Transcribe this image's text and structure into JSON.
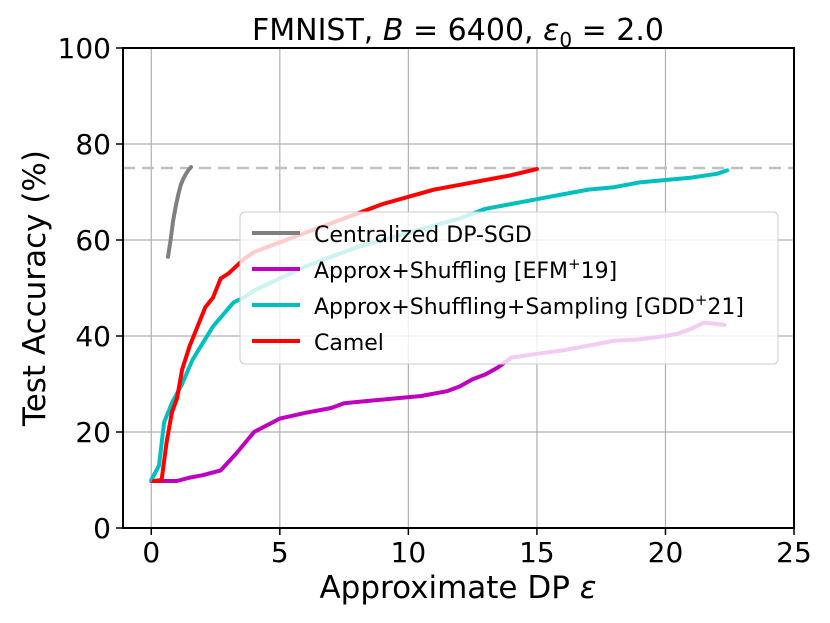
{
  "chart_data": {
    "type": "line",
    "title": {
      "prefix": "FMNIST, ",
      "b_symbol": "B",
      "b_value": " = 6400, ",
      "eps_symbol": "ε",
      "eps_sub": "0",
      "eps_value": " = 2.0"
    },
    "xlabel": {
      "text": "Approximate DP ",
      "symbol": "ε"
    },
    "ylabel": "Test Accuracy (%)",
    "xlim": [
      -1.1,
      25
    ],
    "ylim": [
      0,
      100
    ],
    "xticks": [
      "0",
      "5",
      "10",
      "15",
      "20",
      "25"
    ],
    "yticks": [
      "0",
      "20",
      "40",
      "60",
      "80",
      "100"
    ],
    "grid": true,
    "legend_position": "center-right",
    "reference_line": {
      "y": 75,
      "style": "dashed",
      "color": "#c0c0c0"
    },
    "series": [
      {
        "name": "Centralized DP-SGD",
        "color": "#808080",
        "x": [
          0.65,
          0.75,
          0.85,
          0.95,
          1.05,
          1.15,
          1.25,
          1.35,
          1.45,
          1.55
        ],
        "y": [
          56.5,
          60,
          64,
          67,
          69.5,
          71.5,
          72.8,
          73.8,
          74.6,
          75.2
        ]
      },
      {
        "name": "Approx+Shuffling [EFM",
        "name_sup": "+",
        "name_end": "19]",
        "color": "#bf00bf",
        "x": [
          0,
          0.5,
          1,
          1.5,
          2,
          2.7,
          3.3,
          4,
          5,
          6,
          7,
          7.5,
          8.5,
          9.5,
          10.5,
          11.5,
          12,
          12.5,
          13,
          13.5,
          14,
          15,
          16,
          17,
          18,
          19,
          20,
          20.5,
          21,
          21.5,
          22,
          22.3
        ],
        "y": [
          9.8,
          9.8,
          9.8,
          10.5,
          11,
          12,
          15.5,
          20,
          22.8,
          24,
          25,
          26,
          26.5,
          27,
          27.5,
          28.5,
          29.5,
          31,
          32,
          33.5,
          35.5,
          36.3,
          37,
          38,
          39,
          39.3,
          40,
          40.5,
          41.5,
          42.8,
          42.5,
          42.3
        ]
      },
      {
        "name": "Approx+Shuffling+Sampling [GDD",
        "name_sup": "+",
        "name_end": "21]",
        "color": "#00bfbf",
        "x": [
          0,
          0.3,
          0.5,
          0.8,
          1.2,
          1.6,
          2,
          2.4,
          2.8,
          3.2,
          3.6,
          4,
          5,
          6,
          7,
          8,
          9,
          10,
          11,
          12,
          13,
          14,
          15,
          16,
          17,
          18,
          19,
          20,
          21,
          22,
          22.4
        ],
        "y": [
          10,
          13,
          22,
          26,
          30,
          35,
          38.5,
          42,
          44.5,
          47,
          48,
          49.5,
          52,
          54.5,
          56.5,
          58.5,
          60,
          61.5,
          63,
          64.5,
          66.5,
          67.5,
          68.5,
          69.5,
          70.5,
          71,
          72,
          72.5,
          73,
          73.8,
          74.5
        ]
      },
      {
        "name": "Camel",
        "color": "#ff0000",
        "x": [
          0.1,
          0.4,
          0.6,
          0.8,
          1,
          1.2,
          1.5,
          1.8,
          2.1,
          2.4,
          2.7,
          3,
          3.3,
          3.6,
          4,
          5,
          6,
          7,
          8,
          9,
          10,
          11,
          12,
          13,
          14,
          15
        ],
        "y": [
          9.8,
          10,
          18,
          24,
          27,
          33,
          38,
          42,
          46,
          48,
          52,
          53,
          54.5,
          56,
          57.5,
          59.5,
          61.5,
          63.5,
          65.5,
          67.5,
          69,
          70.5,
          71.5,
          72.5,
          73.5,
          74.8
        ]
      }
    ]
  }
}
